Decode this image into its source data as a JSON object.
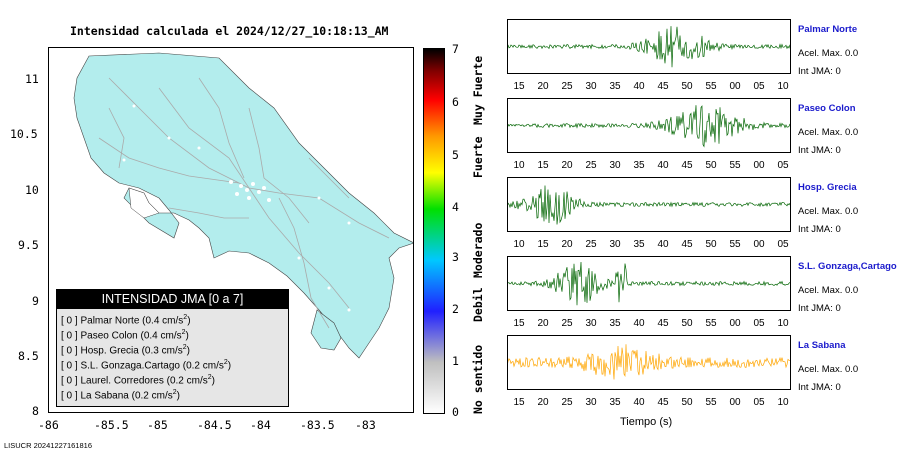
{
  "map": {
    "title": "Intensidad calculada el 2024/12/27_10:18:13_AM",
    "x_ticks": [
      "-86",
      "-85.5",
      "-85",
      "-84.5",
      "-84",
      "-83.5",
      "-83"
    ],
    "y_ticks": [
      "11",
      "10.5",
      "10",
      "9.5",
      "9",
      "8.5",
      "8"
    ],
    "land_color": "#b3eded",
    "road_color": "#aaaaaa"
  },
  "legend": {
    "header": "INTENSIDAD JMA [0 a 7]",
    "rows": [
      {
        "level": "[ 0 ]",
        "text": "Palmar Norte (0.4 cm/s",
        "sup": "2",
        "close": ")"
      },
      {
        "level": "[ 0 ]",
        "text": "Paseo Colon (0.4 cm/s",
        "sup": "2",
        "close": ")"
      },
      {
        "level": "[ 0 ]",
        "text": "Hosp. Grecia (0.3 cm/s",
        "sup": "2",
        "close": ")"
      },
      {
        "level": "[ 0 ]",
        "text": "S.L. Gonzaga.Cartago (0.2 cm/s",
        "sup": "2",
        "close": ")"
      },
      {
        "level": "[ 0 ]",
        "text": "Laurel. Corredores (0.2 cm/s",
        "sup": "2",
        "close": ")"
      },
      {
        "level": "[ 0 ]",
        "text": "La Sabana (0.2 cm/s",
        "sup": "2",
        "close": ")"
      }
    ]
  },
  "colorbar": {
    "numbers": [
      "7",
      "6",
      "5",
      "4",
      "3",
      "2",
      "1",
      "0"
    ],
    "words": [
      "Muy Fuerte",
      "Fuerte",
      "Moderado",
      "Debil",
      "No sentido"
    ]
  },
  "stations": [
    {
      "name": "Palmar Norte",
      "acel": "Acel. Max. 0.0",
      "int": "Int JMA: 0",
      "color": "#006400",
      "ticks": [
        "15",
        "20",
        "25",
        "30",
        "35",
        "40",
        "45",
        "50",
        "55",
        "00",
        "05",
        "10"
      ]
    },
    {
      "name": "Paseo Colon",
      "acel": "Acel. Max. 0.0",
      "int": "Int JMA: 0",
      "color": "#006400",
      "ticks": [
        "10",
        "15",
        "20",
        "25",
        "30",
        "35",
        "40",
        "45",
        "50",
        "55",
        "00",
        "05"
      ]
    },
    {
      "name": "Hosp. Grecia",
      "acel": "Acel. Max. 0.0",
      "int": "Int JMA: 0",
      "color": "#006400",
      "ticks": [
        "10",
        "15",
        "20",
        "25",
        "30",
        "35",
        "40",
        "45",
        "50",
        "55",
        "00",
        "05"
      ]
    },
    {
      "name": "S.L. Gonzaga,Cartago",
      "acel": "Acel. Max. 0.0",
      "int": "Int JMA: 0",
      "color": "#006400",
      "ticks": [
        "15",
        "20",
        "25",
        "30",
        "35",
        "40",
        "45",
        "50",
        "55",
        "00",
        "05",
        "10"
      ]
    },
    {
      "name": "La Sabana",
      "acel": "Acel. Max. 0.0",
      "int": "Int JMA: 0",
      "color": "#ffa500",
      "ticks": [
        "15",
        "20",
        "25",
        "30",
        "35",
        "40",
        "45",
        "50",
        "55",
        "00",
        "05",
        "10"
      ]
    }
  ],
  "xlabel": "Tiempo (s)",
  "footer": "LISUCR 20241227161816"
}
